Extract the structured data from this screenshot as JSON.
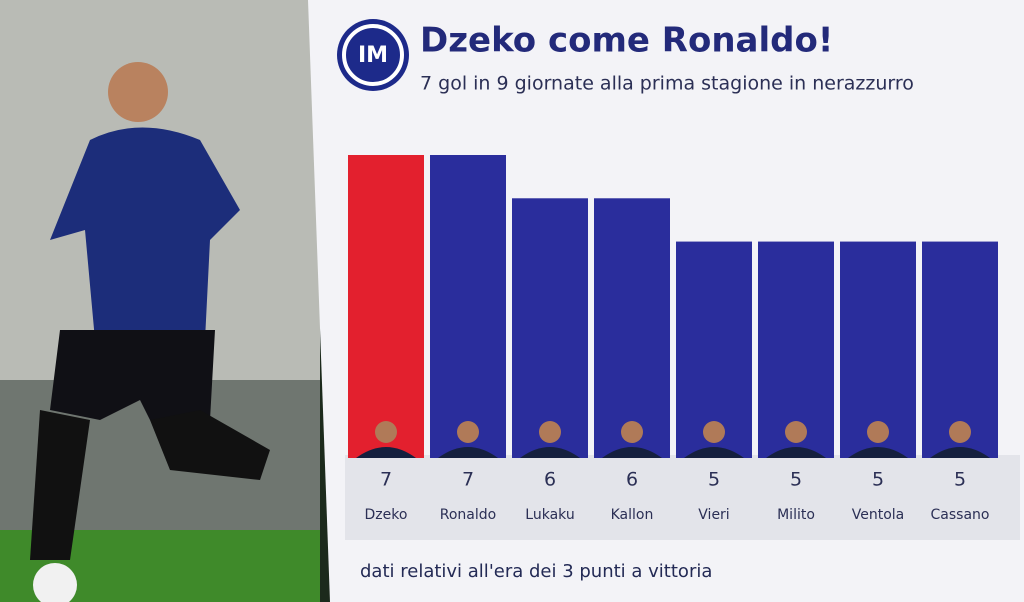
{
  "chart_data": {
    "type": "bar",
    "title": "Dzeko come Ronaldo!",
    "subtitle": "7 gol in 9 giornate alla prima stagione in nerazzurro",
    "categories": [
      "Dzeko",
      "Ronaldo",
      "Lukaku",
      "Kallon",
      "Vieri",
      "Milito",
      "Ventola",
      "Cassano"
    ],
    "values": [
      7,
      7,
      6,
      6,
      5,
      5,
      5,
      5
    ],
    "colors": [
      "#e3202e",
      "#2a2d9c",
      "#2a2d9c",
      "#2a2d9c",
      "#2a2d9c",
      "#2a2d9c",
      "#2a2d9c",
      "#2a2d9c"
    ],
    "footnote": "dati relativi all'era dei 3 punti a vittoria"
  }
}
